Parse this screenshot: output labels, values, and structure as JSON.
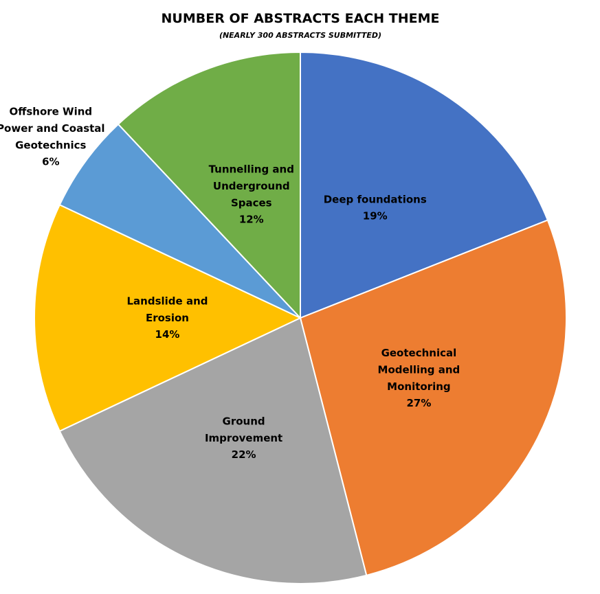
{
  "chart_data": {
    "type": "pie",
    "title": "NUMBER OF ABSTRACTS EACH THEME",
    "subtitle": "(NEARLY 300 ABSTRACTS SUBMITTED)",
    "categories": [
      "Deep foundations",
      "Geotechnical\nModelling and\nMonitoring",
      "Ground\nImprovement",
      "Landslide and\nErosion",
      "Offshore Wind\nPower and Coastal\nGeotechnics",
      "Tunnelling and\nUnderground\nSpaces"
    ],
    "values": [
      19,
      27,
      22,
      14,
      6,
      12
    ],
    "value_labels": [
      "19%",
      "27%",
      "22%",
      "14%",
      "6%",
      "12%"
    ],
    "colors": [
      "#4472c4",
      "#ed7d31",
      "#a5a5a5",
      "#ffc000",
      "#5b9bd5",
      "#70ad47"
    ]
  }
}
